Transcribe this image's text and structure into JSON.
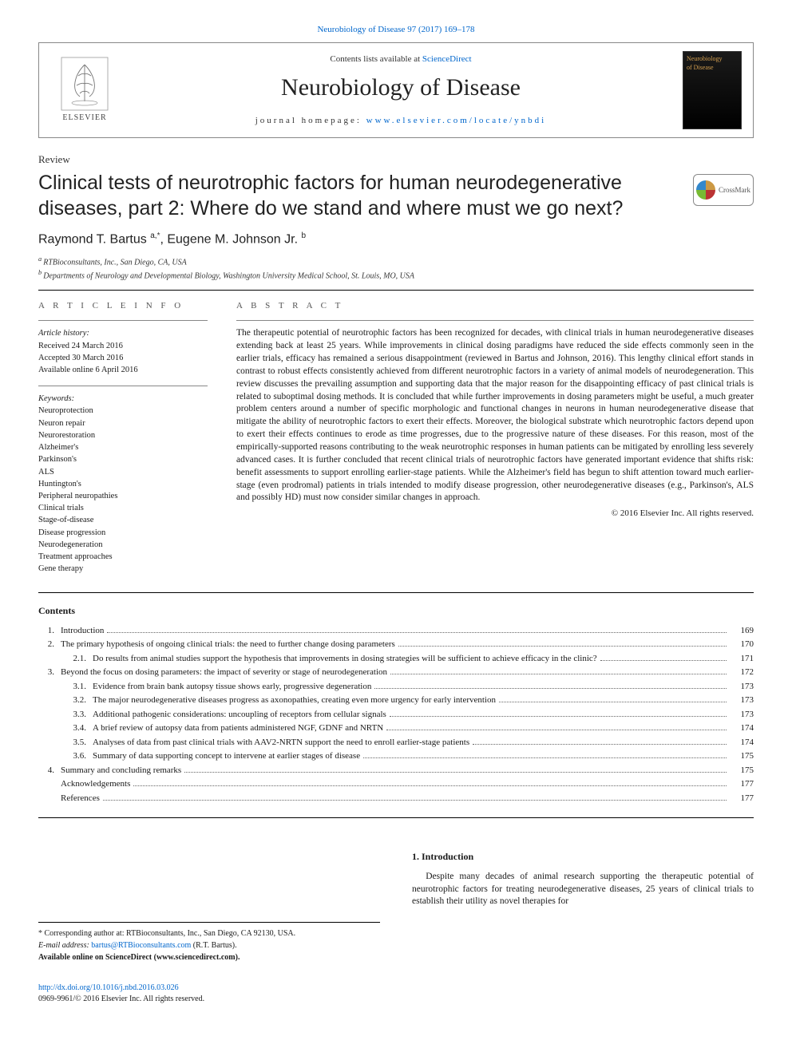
{
  "top_link": {
    "text": "Neurobiology of Disease 97 (2017) 169–178",
    "href": "#"
  },
  "header": {
    "contents_line_pre": "Contents lists available at ",
    "contents_line_link": "ScienceDirect",
    "journal_name": "Neurobiology of Disease",
    "homepage_pre": "journal homepage: ",
    "homepage_link": "www.elsevier.com/locate/ynbdi",
    "publisher_brand": "ELSEVIER",
    "cover_text_top": "Neurobiology",
    "cover_text_bot": "of Disease"
  },
  "article": {
    "type": "Review",
    "title": "Clinical tests of neurotrophic factors for human neurodegenerative diseases, part 2: Where do we stand and where must we go next?",
    "crossmark_label": "CrossMark",
    "authors_html_parts": {
      "a1_name": "Raymond T. Bartus ",
      "a1_sup": "a,",
      "a1_star": "*",
      "sep": ", ",
      "a2_name": "Eugene M. Johnson Jr. ",
      "a2_sup": "b"
    },
    "affiliations": [
      {
        "sup": "a",
        "text": "RTBioconsultants, Inc., San Diego, CA, USA"
      },
      {
        "sup": "b",
        "text": "Departments of Neurology and Developmental Biology, Washington University Medical School, St. Louis, MO, USA"
      }
    ]
  },
  "article_info": {
    "label": "A R T I C L E   I N F O",
    "history_label": "Article history:",
    "history": [
      "Received 24 March 2016",
      "Accepted 30 March 2016",
      "Available online 6 April 2016"
    ],
    "keywords_label": "Keywords:",
    "keywords": [
      "Neuroprotection",
      "Neuron repair",
      "Neurorestoration",
      "Alzheimer's",
      "Parkinson's",
      "ALS",
      "Huntington's",
      "Peripheral neuropathies",
      "Clinical trials",
      "Stage-of-disease",
      "Disease progression",
      "Neurodegeneration",
      "Treatment approaches",
      "Gene therapy"
    ]
  },
  "abstract": {
    "label": "A B S T R A C T",
    "text": "The therapeutic potential of neurotrophic factors has been recognized for decades, with clinical trials in human neurodegenerative diseases extending back at least 25 years. While improvements in clinical dosing paradigms have reduced the side effects commonly seen in the earlier trials, efficacy has remained a serious disappointment (reviewed in Bartus and Johnson, 2016). This lengthy clinical effort stands in contrast to robust effects consistently achieved from different neurotrophic factors in a variety of animal models of neurodegeneration. This review discusses the prevailing assumption and supporting data that the major reason for the disappointing efficacy of past clinical trials is related to suboptimal dosing methods. It is concluded that while further improvements in dosing parameters might be useful, a much greater problem centers around a number of specific morphologic and functional changes in neurons in human neurodegenerative disease that mitigate the ability of neurotrophic factors to exert their effects. Moreover, the biological substrate which neurotrophic factors depend upon to exert their effects continues to erode as time progresses, due to the progressive nature of these diseases. For this reason, most of the empirically-supported reasons contributing to the weak neurotrophic responses in human patients can be mitigated by enrolling less severely advanced cases. It is further concluded that recent clinical trials of neurotrophic factors have generated important evidence that shifts risk: benefit assessments to support enrolling earlier-stage patients. While the Alzheimer's field has begun to shift attention toward much earlier-stage (even prodromal) patients in trials intended to modify disease progression, other neurodegenerative diseases (e.g., Parkinson's, ALS and possibly HD) must now consider similar changes in approach.",
    "copyright": "© 2016 Elsevier Inc. All rights reserved."
  },
  "contents": {
    "heading": "Contents",
    "items": [
      {
        "num": "1.",
        "sub": "",
        "text": "Introduction",
        "page": "169",
        "indent": 0
      },
      {
        "num": "2.",
        "sub": "",
        "text": "The primary hypothesis of ongoing clinical trials: the need to further change dosing parameters",
        "page": "170",
        "indent": 0
      },
      {
        "num": "",
        "sub": "2.1.",
        "text": "Do results from animal studies support the hypothesis that improvements in dosing strategies will be sufficient to achieve efficacy in the clinic?",
        "page": "171",
        "indent": 1
      },
      {
        "num": "3.",
        "sub": "",
        "text": "Beyond the focus on dosing parameters: the impact of severity or stage of neurodegeneration",
        "page": "172",
        "indent": 0
      },
      {
        "num": "",
        "sub": "3.1.",
        "text": "Evidence from brain bank autopsy tissue shows early, progressive degeneration",
        "page": "173",
        "indent": 1
      },
      {
        "num": "",
        "sub": "3.2.",
        "text": "The major neurodegenerative diseases progress as axonopathies, creating even more urgency for early intervention",
        "page": "173",
        "indent": 1
      },
      {
        "num": "",
        "sub": "3.3.",
        "text": "Additional pathogenic considerations: uncoupling of receptors from cellular signals",
        "page": "173",
        "indent": 1
      },
      {
        "num": "",
        "sub": "3.4.",
        "text": "A brief review of autopsy data from patients administered NGF, GDNF and NRTN",
        "page": "174",
        "indent": 1
      },
      {
        "num": "",
        "sub": "3.5.",
        "text": "Analyses of data from past clinical trials with AAV2-NRTN support the need to enroll earlier-stage patients",
        "page": "174",
        "indent": 1
      },
      {
        "num": "",
        "sub": "3.6.",
        "text": "Summary of data supporting concept to intervene at earlier stages of disease",
        "page": "175",
        "indent": 1
      },
      {
        "num": "4.",
        "sub": "",
        "text": "Summary and concluding remarks",
        "page": "175",
        "indent": 0
      },
      {
        "num": "",
        "sub": "",
        "text": "Acknowledgements",
        "page": "177",
        "indent": 0
      },
      {
        "num": "",
        "sub": "",
        "text": "References",
        "page": "177",
        "indent": 0
      }
    ]
  },
  "introduction": {
    "heading": "1. Introduction",
    "text": "Despite many decades of animal research supporting the therapeutic potential of neurotrophic factors for treating neurodegenerative diseases, 25 years of clinical trials to establish their utility as novel therapies for"
  },
  "corresponding": {
    "star": "*",
    "line1": "Corresponding author at: RTBioconsultants, Inc., San Diego, CA 92130, USA.",
    "email_label": "E-mail address: ",
    "email": "bartus@RTBioconsultants.com",
    "email_after": " (R.T. Bartus).",
    "avail": "Available online on ScienceDirect (www.sciencedirect.com)."
  },
  "footer": {
    "doi": "http://dx.doi.org/10.1016/j.nbd.2016.03.026",
    "issn_line": "0969-9961/© 2016 Elsevier Inc. All rights reserved."
  },
  "colors": {
    "link": "#0066cc",
    "text": "#1a1a1a",
    "rule": "#000000",
    "rule_light": "#888888",
    "bg": "#ffffff"
  }
}
